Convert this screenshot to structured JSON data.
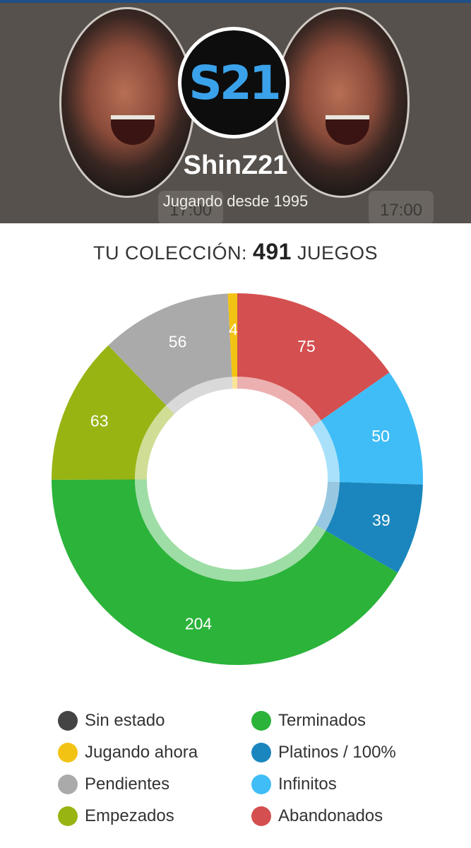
{
  "profile": {
    "username": "ShinZ21",
    "subtitle": "Jugando desde 1995",
    "logo_text": "S21",
    "time_left": "17:00",
    "time_right": "17:00"
  },
  "collection": {
    "prefix": "TU COLECCIÓN:",
    "count": "491",
    "suffix": "JUEGOS"
  },
  "chart_data": {
    "type": "pie",
    "donut": true,
    "total": 491,
    "slices": [
      {
        "label": "Abandonados",
        "value": 75,
        "color": "#d44f4f"
      },
      {
        "label": "Infinitos",
        "value": 50,
        "color": "#40bdf6"
      },
      {
        "label": "Platinos / 100%",
        "value": 39,
        "color": "#1a86bd"
      },
      {
        "label": "Terminados",
        "value": 204,
        "color": "#2bb33a"
      },
      {
        "label": "Empezados",
        "value": 63,
        "color": "#97b413"
      },
      {
        "label": "Pendientes",
        "value": 56,
        "color": "#aaaaaa"
      },
      {
        "label": "Jugando ahora",
        "value": 4,
        "color": "#f3c314"
      },
      {
        "label": "Sin estado",
        "value": 0,
        "color": "#444444"
      }
    ]
  },
  "legend": {
    "left": [
      {
        "label": "Sin estado",
        "color": "#444444"
      },
      {
        "label": "Jugando ahora",
        "color": "#f3c314"
      },
      {
        "label": "Pendientes",
        "color": "#aaaaaa"
      },
      {
        "label": "Empezados",
        "color": "#97b413"
      }
    ],
    "right": [
      {
        "label": "Terminados",
        "color": "#2bb33a"
      },
      {
        "label": "Platinos / 100%",
        "color": "#1a86bd"
      },
      {
        "label": "Infinitos",
        "color": "#40bdf6"
      },
      {
        "label": "Abandonados",
        "color": "#d44f4f"
      }
    ]
  }
}
